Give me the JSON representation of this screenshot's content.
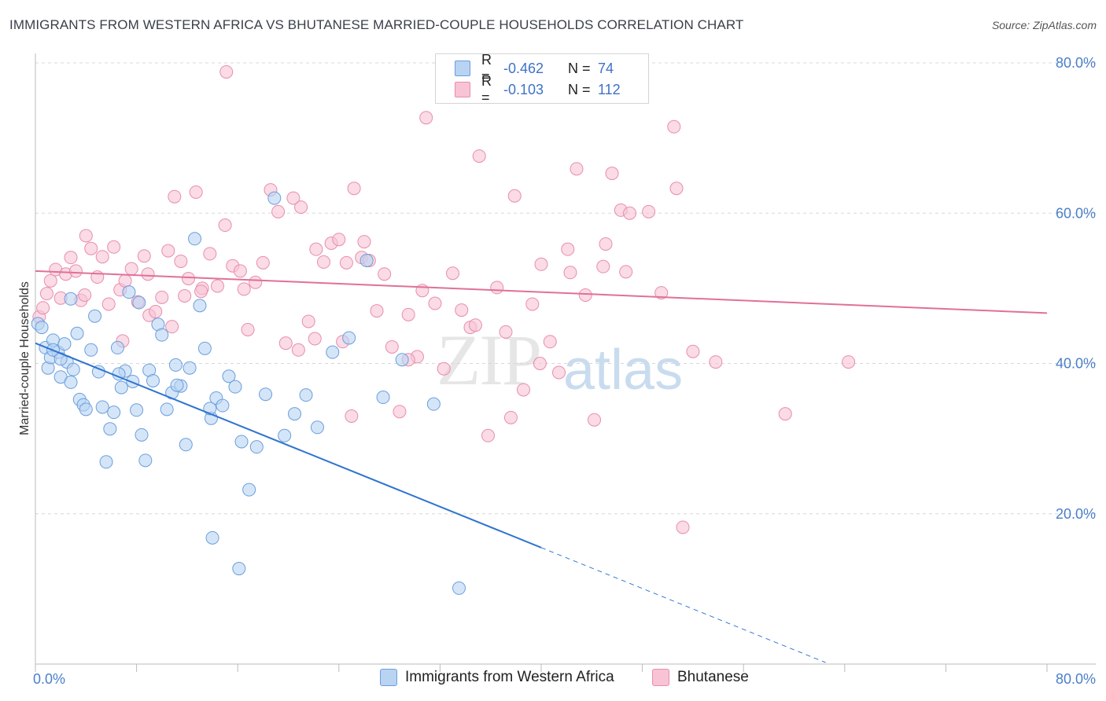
{
  "title": "IMMIGRANTS FROM WESTERN AFRICA VS BHUTANESE MARRIED-COUPLE HOUSEHOLDS CORRELATION CHART",
  "source": "Source: ZipAtlas.com",
  "watermark": {
    "zip": "ZIP",
    "atlas": "atlas"
  },
  "legend_top": {
    "rows": [
      {
        "r_label": "R =",
        "r_value": "-0.462",
        "n_label": "N =",
        "n_value": "74"
      },
      {
        "r_label": "R =",
        "r_value": "-0.103",
        "n_label": "N =",
        "n_value": "112"
      }
    ]
  },
  "legend_bottom": {
    "items": [
      {
        "label": "Immigrants from Western Africa"
      },
      {
        "label": "Bhutanese"
      }
    ]
  },
  "colors": {
    "blue_fill": "#b9d3f3",
    "blue_stroke": "#6a9fdc",
    "blue_line": "#2f74d0",
    "pink_fill": "#f7c3d5",
    "pink_stroke": "#e88eab",
    "pink_line": "#e0709a",
    "grid": "#d8d8d8",
    "tick_text": "#4a7fc9"
  },
  "chart_data": {
    "type": "scatter",
    "title": "IMMIGRANTS FROM WESTERN AFRICA VS BHUTANESE MARRIED-COUPLE HOUSEHOLDS CORRELATION CHART",
    "xlabel": "",
    "ylabel": "Married-couple Households",
    "xlim": [
      0,
      80
    ],
    "ylim": [
      0,
      80
    ],
    "x_tick_labels": [
      "0.0%",
      "80.0%"
    ],
    "y_tick_labels": [
      "20.0%",
      "40.0%",
      "60.0%",
      "80.0%"
    ],
    "y_ticks": [
      20,
      40,
      60,
      80
    ],
    "grid": true,
    "legend_position": "top-center",
    "series": [
      {
        "name": "Immigrants from Western Africa",
        "r": -0.462,
        "n": 74,
        "trend": {
          "x0": 0.0,
          "y0": 42.7,
          "x1": 40.0,
          "y1": 15.5,
          "dashed_to_x": 62.5
        },
        "points": [
          [
            0.2,
            45.3
          ],
          [
            0.5,
            44.8
          ],
          [
            0.8,
            42.1
          ],
          [
            1.0,
            39.4
          ],
          [
            1.2,
            40.8
          ],
          [
            1.4,
            43.1
          ],
          [
            1.8,
            41.5
          ],
          [
            2.0,
            38.2
          ],
          [
            2.3,
            42.6
          ],
          [
            2.5,
            40.2
          ],
          [
            2.8,
            37.5
          ],
          [
            3.0,
            39.2
          ],
          [
            3.3,
            44.0
          ],
          [
            3.5,
            35.2
          ],
          [
            3.8,
            34.5
          ],
          [
            4.0,
            33.9
          ],
          [
            4.4,
            41.8
          ],
          [
            4.7,
            46.3
          ],
          [
            5.0,
            38.9
          ],
          [
            5.3,
            34.2
          ],
          [
            5.6,
            26.9
          ],
          [
            5.9,
            31.3
          ],
          [
            6.2,
            33.5
          ],
          [
            6.5,
            42.1
          ],
          [
            6.8,
            36.8
          ],
          [
            7.1,
            39.0
          ],
          [
            7.4,
            49.5
          ],
          [
            7.7,
            37.6
          ],
          [
            8.0,
            33.8
          ],
          [
            8.4,
            30.5
          ],
          [
            8.7,
            27.1
          ],
          [
            9.0,
            39.1
          ],
          [
            9.3,
            37.7
          ],
          [
            9.7,
            45.2
          ],
          [
            10.0,
            43.8
          ],
          [
            10.4,
            33.9
          ],
          [
            10.8,
            36.1
          ],
          [
            11.1,
            39.8
          ],
          [
            11.5,
            37.0
          ],
          [
            11.9,
            29.2
          ],
          [
            12.2,
            39.4
          ],
          [
            12.6,
            56.6
          ],
          [
            13.0,
            47.7
          ],
          [
            13.4,
            42.0
          ],
          [
            13.9,
            32.7
          ],
          [
            14.3,
            35.4
          ],
          [
            14.8,
            34.4
          ],
          [
            15.3,
            38.3
          ],
          [
            15.8,
            36.9
          ],
          [
            16.3,
            29.6
          ],
          [
            16.9,
            23.2
          ],
          [
            17.5,
            28.9
          ],
          [
            18.2,
            35.9
          ],
          [
            18.9,
            62.0
          ],
          [
            19.7,
            30.4
          ],
          [
            20.5,
            33.3
          ],
          [
            21.4,
            35.8
          ],
          [
            22.3,
            31.5
          ],
          [
            23.5,
            41.5
          ],
          [
            24.8,
            43.4
          ],
          [
            26.2,
            53.7
          ],
          [
            27.5,
            35.5
          ],
          [
            29.0,
            40.5
          ],
          [
            31.5,
            34.6
          ],
          [
            33.5,
            10.1
          ],
          [
            13.8,
            34.0
          ],
          [
            2.8,
            48.6
          ],
          [
            1.4,
            41.8
          ],
          [
            2.0,
            40.6
          ],
          [
            6.6,
            38.6
          ],
          [
            8.2,
            48.1
          ],
          [
            11.2,
            37.1
          ],
          [
            14.0,
            16.8
          ],
          [
            16.1,
            12.7
          ]
        ]
      },
      {
        "name": "Bhutanese",
        "r": -0.103,
        "n": 112,
        "trend": {
          "x0": 0.0,
          "y0": 52.3,
          "x1": 80.0,
          "y1": 46.7
        },
        "points": [
          [
            0.3,
            46.2
          ],
          [
            0.6,
            47.4
          ],
          [
            0.9,
            49.3
          ],
          [
            1.2,
            51.0
          ],
          [
            1.6,
            52.5
          ],
          [
            2.0,
            48.7
          ],
          [
            2.4,
            51.9
          ],
          [
            2.8,
            54.1
          ],
          [
            3.2,
            52.3
          ],
          [
            3.6,
            48.4
          ],
          [
            4.0,
            57.0
          ],
          [
            4.4,
            55.3
          ],
          [
            4.9,
            51.5
          ],
          [
            5.3,
            54.2
          ],
          [
            5.8,
            47.9
          ],
          [
            6.2,
            55.5
          ],
          [
            6.7,
            49.8
          ],
          [
            7.1,
            51.0
          ],
          [
            7.6,
            52.6
          ],
          [
            8.1,
            48.2
          ],
          [
            8.6,
            54.3
          ],
          [
            9.0,
            46.4
          ],
          [
            9.5,
            46.9
          ],
          [
            10.0,
            48.8
          ],
          [
            10.5,
            55.0
          ],
          [
            11.0,
            62.2
          ],
          [
            11.5,
            53.6
          ],
          [
            12.1,
            51.3
          ],
          [
            12.7,
            62.8
          ],
          [
            13.2,
            50.0
          ],
          [
            13.8,
            54.6
          ],
          [
            14.4,
            50.3
          ],
          [
            15.0,
            58.4
          ],
          [
            15.6,
            53.0
          ],
          [
            16.2,
            52.3
          ],
          [
            16.8,
            44.5
          ],
          [
            17.4,
            50.8
          ],
          [
            18.0,
            53.4
          ],
          [
            18.6,
            63.1
          ],
          [
            19.2,
            60.2
          ],
          [
            19.8,
            42.7
          ],
          [
            20.4,
            62.0
          ],
          [
            21.0,
            60.8
          ],
          [
            21.6,
            45.6
          ],
          [
            22.2,
            55.2
          ],
          [
            22.8,
            53.5
          ],
          [
            23.4,
            56.0
          ],
          [
            24.0,
            56.5
          ],
          [
            24.6,
            53.4
          ],
          [
            25.2,
            63.3
          ],
          [
            25.8,
            54.1
          ],
          [
            26.4,
            53.7
          ],
          [
            27.0,
            47.0
          ],
          [
            27.6,
            51.9
          ],
          [
            28.2,
            42.2
          ],
          [
            28.8,
            33.6
          ],
          [
            29.5,
            46.5
          ],
          [
            30.2,
            40.9
          ],
          [
            30.9,
            72.7
          ],
          [
            31.6,
            48.0
          ],
          [
            32.3,
            39.3
          ],
          [
            33.0,
            52.0
          ],
          [
            33.7,
            47.1
          ],
          [
            34.4,
            44.8
          ],
          [
            35.1,
            67.6
          ],
          [
            35.8,
            30.4
          ],
          [
            36.5,
            50.1
          ],
          [
            37.2,
            44.2
          ],
          [
            37.9,
            62.3
          ],
          [
            38.6,
            36.5
          ],
          [
            39.3,
            47.9
          ],
          [
            40.0,
            53.2
          ],
          [
            40.7,
            42.9
          ],
          [
            41.4,
            38.8
          ],
          [
            42.1,
            55.2
          ],
          [
            42.8,
            65.9
          ],
          [
            43.5,
            49.1
          ],
          [
            44.2,
            32.5
          ],
          [
            44.9,
            52.9
          ],
          [
            45.6,
            65.3
          ],
          [
            46.3,
            60.4
          ],
          [
            47.0,
            60.0
          ],
          [
            48.5,
            60.2
          ],
          [
            49.5,
            49.4
          ],
          [
            50.5,
            71.5
          ],
          [
            52.0,
            41.6
          ],
          [
            53.8,
            40.2
          ],
          [
            59.3,
            33.3
          ],
          [
            15.1,
            78.8
          ],
          [
            10.8,
            44.9
          ],
          [
            13.1,
            49.6
          ],
          [
            6.9,
            43.0
          ],
          [
            20.8,
            41.8
          ],
          [
            24.3,
            42.9
          ],
          [
            26.0,
            56.2
          ],
          [
            30.6,
            49.7
          ],
          [
            34.8,
            45.1
          ],
          [
            37.6,
            32.8
          ],
          [
            39.9,
            40.0
          ],
          [
            42.3,
            52.1
          ],
          [
            45.1,
            55.9
          ],
          [
            46.7,
            52.2
          ],
          [
            50.7,
            63.3
          ],
          [
            51.2,
            18.2
          ],
          [
            64.3,
            40.2
          ],
          [
            29.5,
            40.5
          ],
          [
            22.1,
            43.3
          ],
          [
            16.5,
            49.9
          ],
          [
            3.9,
            49.1
          ],
          [
            8.9,
            51.9
          ],
          [
            11.8,
            49.0
          ],
          [
            25.0,
            33.0
          ]
        ]
      }
    ]
  }
}
